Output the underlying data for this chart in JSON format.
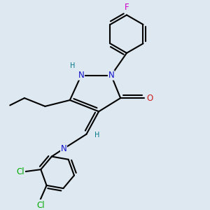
{
  "bg_color": "#dde8f0",
  "bond_color": "#000000",
  "bond_width": 1.5,
  "dbo": 0.013,
  "atom_colors": {
    "N": "#1010cc",
    "O": "#cc2020",
    "F": "#cc00cc",
    "Cl": "#00aa00",
    "H_label": "#007788",
    "C": "#000000"
  },
  "font_size_atom": 8.5,
  "font_size_small": 7.0
}
